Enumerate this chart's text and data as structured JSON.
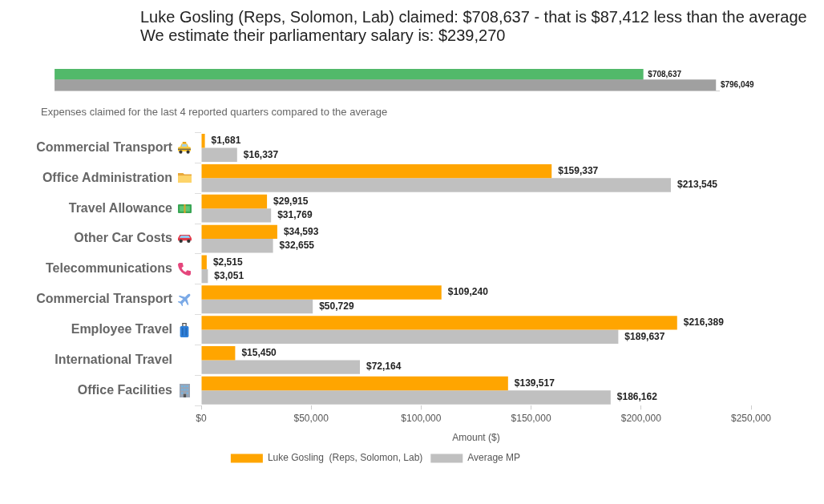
{
  "chart_data": [
    {
      "type": "bar",
      "title": "Luke Gosling (Reps, Solomon, Lab) claimed: $708,637 - that is $87,412 less than the average",
      "subtitle": "We estimate their parliamentary salary is: $239,270",
      "orientation": "horizontal",
      "categories": [
        null,
        null
      ],
      "values": [
        708637,
        796049
      ],
      "colors": [
        "#52b96a",
        "#a0a0a0"
      ],
      "value_labels": [
        "$708,637",
        "$796,049"
      ],
      "tick_labels": false
    },
    {
      "type": "bar",
      "title": "Expenses claimed for the last 4 reported quarters compared to the average",
      "orientation": "horizontal",
      "categories": [
        "Commercial Transport",
        "Office Administration",
        "Travel Allowance",
        "Other Car Costs",
        "Telecommunications",
        "Commercial Transport",
        "Employee Travel",
        "International Travel",
        "Office Facilities"
      ],
      "series": [
        {
          "name": "Luke Gosling  (Reps, Solomon, Lab)",
          "color": "#ffa500",
          "values": [
            1681,
            159337,
            29915,
            34593,
            2515,
            109240,
            216389,
            15450,
            139517
          ],
          "value_labels": [
            "$1,681",
            "$159,337",
            "$29,915",
            "$34,593",
            "$2,515",
            "$109,240",
            "$216,389",
            "$15,450",
            "$139,517"
          ]
        },
        {
          "name": "Average MP",
          "color": "#c0c0c0",
          "values": [
            16337,
            213545,
            31769,
            32655,
            3051,
            50729,
            189637,
            72164,
            186162
          ],
          "value_labels": [
            "$16,337",
            "$213,545",
            "$31,769",
            "$32,655",
            "$3,051",
            "$50,729",
            "$189,637",
            "$72,164",
            "$186,162"
          ]
        }
      ],
      "xlabel": "Amount ($)",
      "xlim": [
        0,
        250000
      ],
      "xticks": [
        {
          "value": 0,
          "label": "$0"
        },
        {
          "value": 50000,
          "label": "$50,000"
        },
        {
          "value": 100000,
          "label": "$100,000"
        },
        {
          "value": 150000,
          "label": "$150,000"
        },
        {
          "value": 200000,
          "label": "$200,000"
        },
        {
          "value": 250000,
          "label": "$250,000"
        }
      ],
      "legend": "bottom"
    }
  ]
}
